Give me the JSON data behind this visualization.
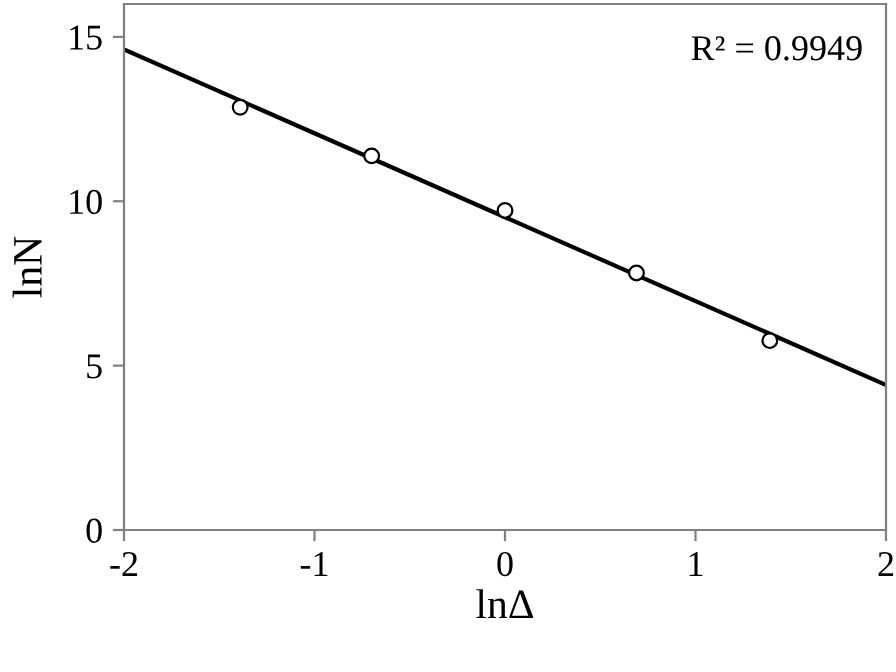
{
  "chart_data": {
    "type": "scatter",
    "xlabel": "lnΔ",
    "ylabel": "lnN",
    "xlim": [
      -2,
      2
    ],
    "ylim": [
      0,
      16
    ],
    "xticks": [
      -2,
      -1,
      0,
      1,
      2
    ],
    "yticks": [
      0,
      5,
      10,
      15
    ],
    "grid": false,
    "legend": false,
    "annotations": [
      "R² = 0.9949"
    ],
    "series": [
      {
        "marker": "circle",
        "color": "#000000",
        "x": [
          -1.39,
          -0.7,
          0.0,
          0.69,
          1.39
        ],
        "values": [
          12.86,
          11.38,
          9.72,
          7.82,
          5.76
        ]
      },
      {
        "type": "line",
        "color": "#000000",
        "marker": "none",
        "line_style": "solid",
        "x": [
          -2,
          2
        ],
        "values": [
          14.62,
          4.41
        ]
      }
    ]
  }
}
